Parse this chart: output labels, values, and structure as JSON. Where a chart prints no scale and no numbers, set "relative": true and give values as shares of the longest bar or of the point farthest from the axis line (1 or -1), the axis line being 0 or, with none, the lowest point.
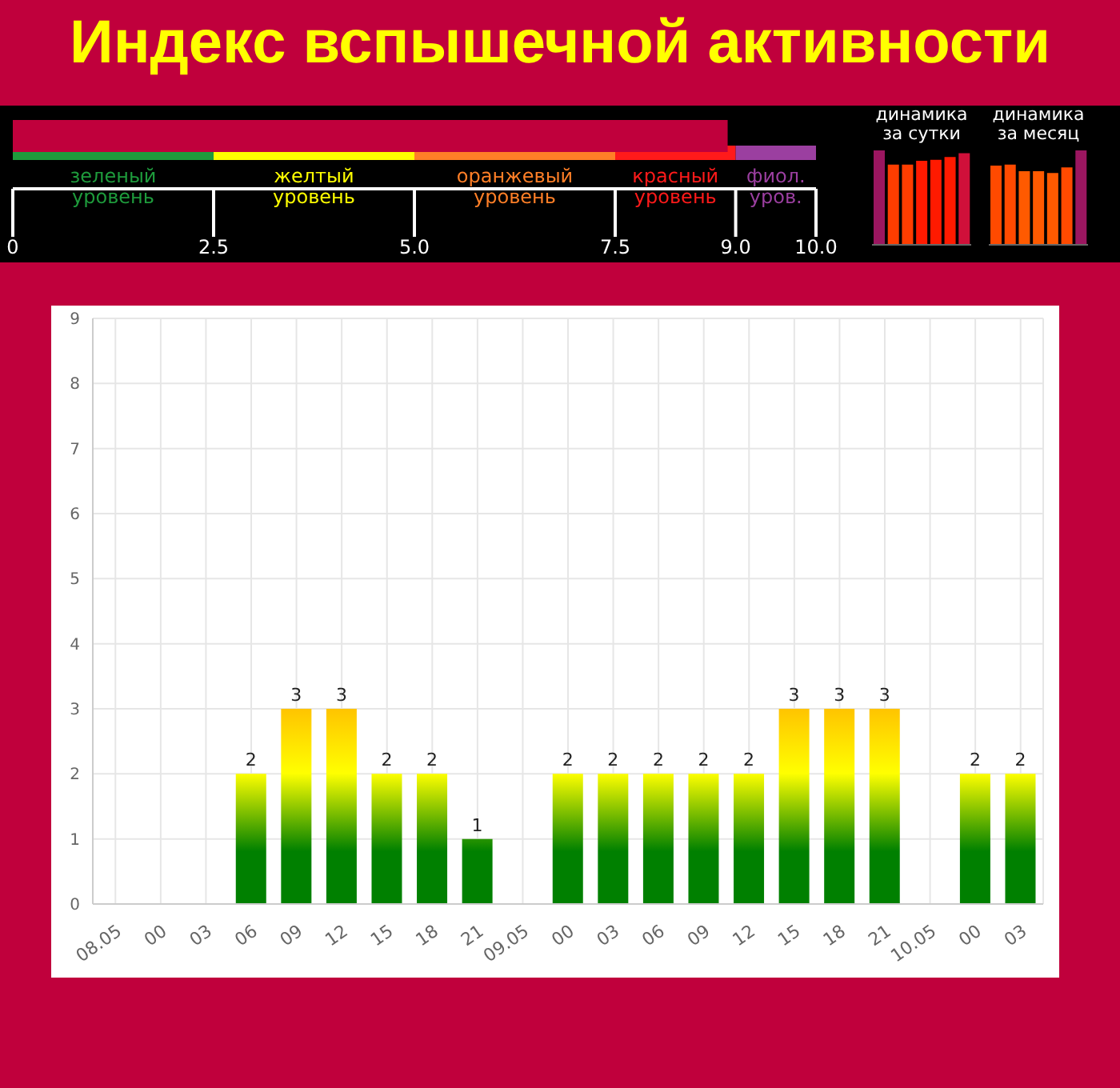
{
  "chart_data": [
    {
      "type": "bar",
      "title": "Индекс вспышечной активности",
      "orientation": "horizontal",
      "categories": [
        null
      ],
      "values": [
        8.9
      ],
      "color": "#c0003c",
      "xlim": [
        0,
        10
      ],
      "xticks": [
        0,
        2.5,
        {
          "value": 5,
          "label": "5.0"
        },
        {
          "value": 7.5,
          "label": "7.5"
        },
        {
          "value": 9,
          "label": "9.0"
        },
        {
          "value": 10,
          "label": "10.0"
        }
      ],
      "tick_labels": "x",
      "grid": false,
      "legend": false,
      "bands": [
        {
          "axis": "x",
          "from": 0,
          "to": 2.5,
          "label": "зеленый уровень",
          "color": "#1e9b3c"
        },
        {
          "axis": "x",
          "from": 2.5,
          "to": 5,
          "label": "желтый уровень",
          "color": "#ffff00"
        },
        {
          "axis": "x",
          "from": 5,
          "to": 7.5,
          "label": "оранжевый уровень",
          "color": "#ff7f27"
        },
        {
          "axis": "x",
          "from": 7.5,
          "to": 9,
          "label": "красный уровень",
          "color": "#ff1a1a"
        },
        {
          "axis": "x",
          "from": 9,
          "to": 10,
          "label": "фиол. уров.",
          "color": "#9b3fa0"
        }
      ]
    },
    {
      "type": "bar",
      "title": "динамика за сутки",
      "relative": true,
      "categories": [
        null,
        null,
        null,
        null,
        null,
        null,
        null
      ],
      "values": [
        1,
        0.85,
        0.85,
        0.89,
        0.9,
        0.93,
        0.97
      ],
      "colors": [
        "#9b1660",
        "#ff3d00",
        "#ff3d00",
        "#ff1a00",
        "#ff1a00",
        "#ff1a00",
        "#d0103a"
      ],
      "grid": false,
      "legend": false
    },
    {
      "type": "bar",
      "title": "динамика за месяц",
      "relative": true,
      "categories": [
        null,
        null,
        null,
        null,
        null,
        null,
        null
      ],
      "values": [
        0.84,
        0.85,
        0.78,
        0.78,
        0.76,
        0.82,
        1
      ],
      "colors": [
        "#ff4a00",
        "#ff4a00",
        "#ff5a00",
        "#ff5a00",
        "#ff5a00",
        "#ff4a00",
        "#9b1660"
      ],
      "grid": false,
      "legend": false
    },
    {
      "type": "bar",
      "categories": [
        "08.05",
        "00",
        "03",
        "06",
        "09",
        "12",
        "15",
        "18",
        "21",
        "09.05",
        "00",
        "03",
        "06",
        "09",
        "12",
        "15",
        "18",
        "21",
        "10.05",
        "00",
        "03"
      ],
      "values": [
        0,
        0,
        0,
        2,
        3,
        3,
        2,
        2,
        1,
        0,
        2,
        2,
        2,
        2,
        2,
        3,
        3,
        3,
        0,
        2,
        2
      ],
      "color": "#008000",
      "value_labels": [
        null,
        null,
        null,
        "2",
        "3",
        "3",
        "2",
        "2",
        "1",
        null,
        "2",
        "2",
        "2",
        "2",
        "2",
        "3",
        "3",
        "3",
        null,
        "2",
        "2"
      ],
      "ylim": [
        0,
        9
      ],
      "yticks": [
        0,
        1,
        2,
        3,
        4,
        5,
        6,
        7,
        8,
        9
      ],
      "grid": true,
      "legend": false
    }
  ]
}
